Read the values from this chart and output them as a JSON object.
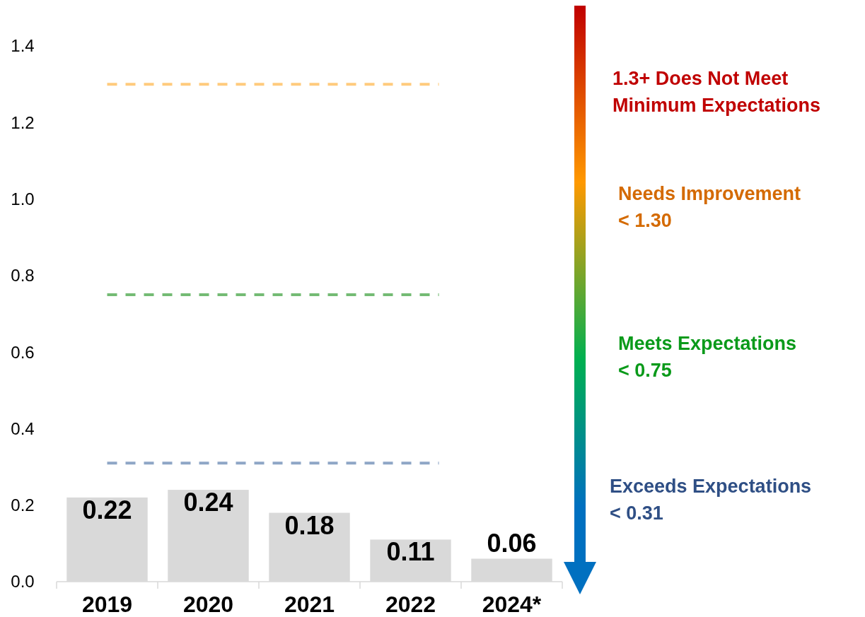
{
  "chart_data": {
    "type": "bar",
    "categories": [
      "2019",
      "2020",
      "2021",
      "2022",
      "2024*"
    ],
    "values": [
      0.22,
      0.24,
      0.18,
      0.11,
      0.06
    ],
    "color": "#d9d9d9",
    "data_labels": true,
    "ylim": [
      0,
      1.4
    ],
    "yticks": [
      {
        "value": 0,
        "label": "0.0"
      },
      {
        "value": 0.2,
        "label": "0.2"
      },
      {
        "value": 0.4,
        "label": "0.4"
      },
      {
        "value": 0.6,
        "label": "0.6"
      },
      {
        "value": 0.8,
        "label": "0.8"
      },
      {
        "value": 1.0,
        "label": "1.0"
      },
      {
        "value": 1.2,
        "label": "1.2"
      },
      {
        "value": 1.4,
        "label": "1.4"
      }
    ],
    "grid": false,
    "ref_lines": [
      {
        "axis": "y",
        "value": 1.3,
        "color": "#ffcb7d",
        "line_style": "dashed"
      },
      {
        "axis": "y",
        "value": 0.75,
        "color": "#74bb74",
        "line_style": "dashed"
      },
      {
        "axis": "y",
        "value": 0.31,
        "color": "#8ea6c6",
        "line_style": "dashed"
      }
    ],
    "annotations": [
      "1.3+ Does Not Meet\nMinimum Expectations",
      "Needs Improvement\n< 1.30",
      "Meets Expectations\n< 0.75",
      "Exceeds Expectations\n< 0.31"
    ]
  }
}
